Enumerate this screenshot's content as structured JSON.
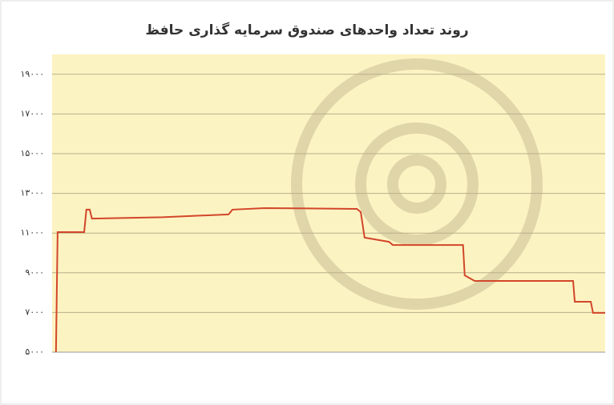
{
  "chart_data": {
    "type": "line",
    "title": "روند تعداد واحدهای صندوق سرمایه گذاری حافظ",
    "x": [
      0.7,
      1.0,
      5.8,
      6.2,
      6.8,
      7.2,
      20,
      31.9,
      32.6,
      38.4,
      55.1,
      55.8,
      56.5,
      60.9,
      61.6,
      74.3,
      74.6,
      76.4,
      94.2,
      94.5,
      97.4,
      97.8,
      100
    ],
    "values": [
      5000,
      11050,
      11050,
      12180,
      12180,
      11730,
      11800,
      11940,
      12180,
      12260,
      12220,
      12060,
      10770,
      10560,
      10400,
      10400,
      8870,
      8590,
      8590,
      7540,
      7540,
      6980,
      6980
    ],
    "color": "#d2462a",
    "background": "#fcf3c2",
    "xlim": [
      0,
      100
    ],
    "ylim": [
      5000,
      20000
    ],
    "yticks": [
      {
        "value": 5000,
        "label": "۵۰۰۰"
      },
      {
        "value": 7000,
        "label": "۷۰۰۰"
      },
      {
        "value": 9000,
        "label": "۹۰۰۰"
      },
      {
        "value": 11000,
        "label": "۱۱۰۰۰"
      },
      {
        "value": 13000,
        "label": "۱۳۰۰۰"
      },
      {
        "value": 15000,
        "label": "۱۵۰۰۰"
      },
      {
        "value": 17000,
        "label": "۱۷۰۰۰"
      },
      {
        "value": 19000,
        "label": "۱۹۰۰۰"
      }
    ],
    "grid": true
  }
}
